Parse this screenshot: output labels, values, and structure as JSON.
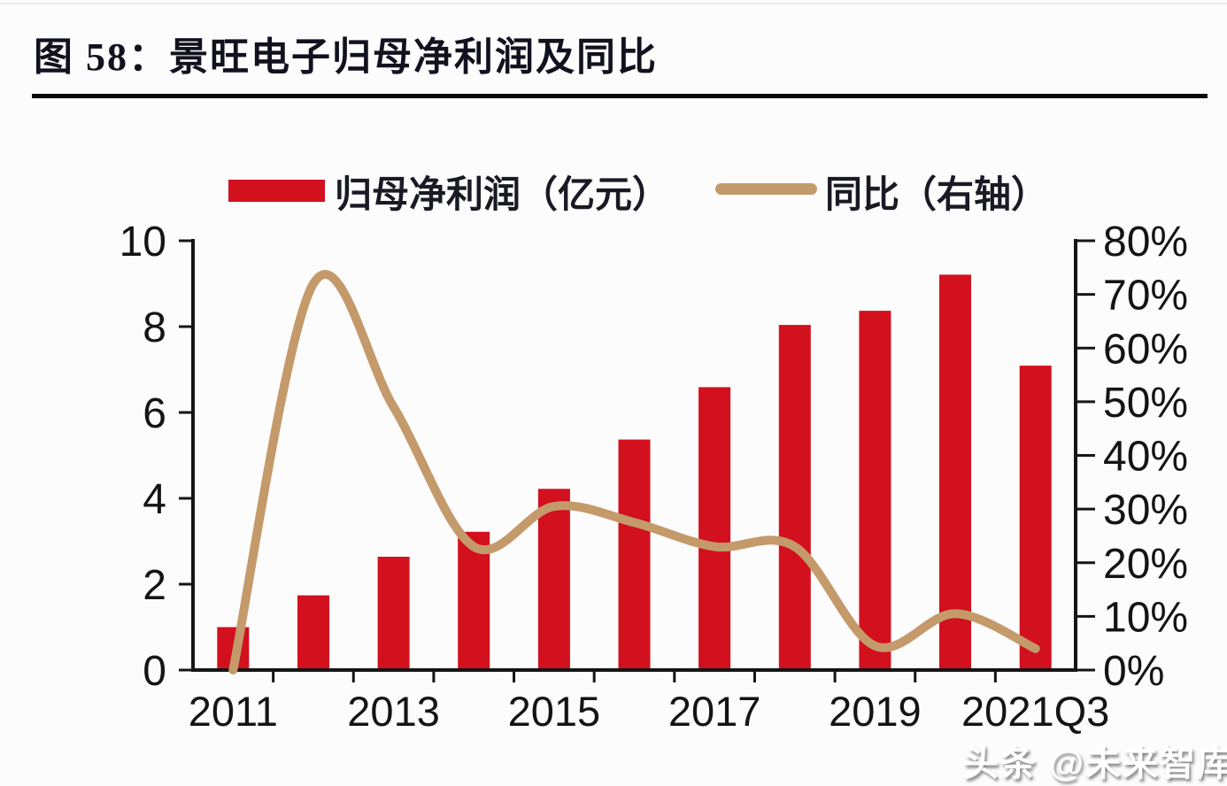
{
  "figure": {
    "title": "图 58：景旺电子归母净利润及同比",
    "watermark": "头条 @未来智库"
  },
  "legend": {
    "items": [
      {
        "label": "归母净利润（亿元）",
        "swatch": "bar-swatch"
      },
      {
        "label": "同比（右轴）",
        "swatch": "line-swatch"
      }
    ]
  },
  "chart_data": {
    "type": "bar",
    "title": "景旺电子归母净利润及同比",
    "categories": [
      "2011",
      "2012",
      "2013",
      "2014",
      "2015",
      "2016",
      "2017",
      "2018",
      "2019",
      "2020",
      "2021Q3"
    ],
    "series": [
      {
        "name": "归母净利润（亿元）",
        "type": "bar",
        "axis": "left",
        "values": [
          1.0,
          1.74,
          2.64,
          3.22,
          4.22,
          5.37,
          6.59,
          8.04,
          8.37,
          9.21,
          7.09
        ]
      },
      {
        "name": "同比（右轴）",
        "type": "line",
        "axis": "right",
        "values": [
          0,
          72,
          49,
          23,
          30.5,
          27.5,
          23,
          23,
          4.5,
          10.5,
          4
        ]
      }
    ],
    "left_axis": {
      "label": "亿元",
      "min": 0,
      "max": 10,
      "tick_labels": [
        "0",
        "2",
        "4",
        "6",
        "8",
        "10"
      ]
    },
    "right_axis": {
      "label": "同比",
      "min": 0,
      "max": 80,
      "tick_labels": [
        "0%",
        "10%",
        "20%",
        "30%",
        "40%",
        "50%",
        "60%",
        "70%",
        "80%"
      ]
    },
    "x_tick_labels": [
      "2011",
      "2013",
      "2015",
      "2017",
      "2019",
      "2021Q3"
    ],
    "grid": false,
    "legend_position": "top",
    "colors": {
      "bar": "#d2101e",
      "line": "#c49a6b",
      "axis": "#151515",
      "text": "#141414"
    }
  }
}
